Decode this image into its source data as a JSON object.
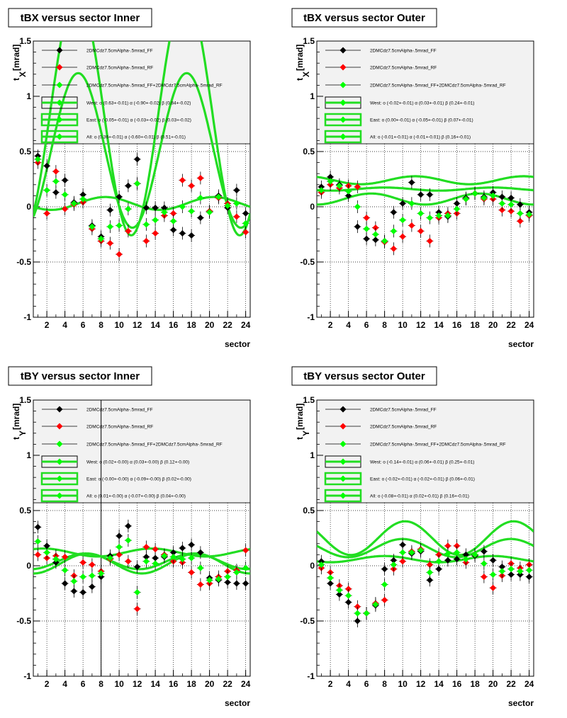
{
  "colors": {
    "ff": "#000000",
    "rf": "#ff0000",
    "sum": "#00ff00",
    "fit": "#22dd22",
    "legend_bg": "#f2f2f2"
  },
  "chart_data": [
    {
      "type": "scatter",
      "title": "tBX versus  sector Inner",
      "xlabel": "sector",
      "ylabel": "t",
      "ylabel_sub": "X",
      "ylabel_unit": "[mrad]",
      "xlim": [
        0.5,
        24.5
      ],
      "ylim": [
        -1,
        1.5
      ],
      "xticks": [
        2,
        4,
        6,
        8,
        10,
        12,
        14,
        16,
        18,
        20,
        22,
        24
      ],
      "yticks": [
        -1,
        -0.5,
        0,
        0.5,
        1,
        1.5
      ],
      "ytick_labels": [
        "-1",
        "-0.5",
        "0",
        "0.5",
        "1",
        "1.5"
      ],
      "grid": true,
      "legend_y_bottom": 0.57,
      "legend": [
        "2DMCdz7.5cmAlpha-.5mrad_FF",
        "2DMCdz7.5cmAlpha-.5mrad_RF",
        "2DMCdz7.5cmAlpha-.5mrad_FF+2DMCdz7.5cmAlpha-.5mrad_RF",
        "West: o (0.63+-0.01) α (-0.90+-0.02) β (0.84+-0.02)",
        "East: o (-0.05+-0.01) α (-0.03+-0.02) β (0.03+-0.02)",
        "All: o (0.36+-0.01) α (-0.60+-0.01) β (0.51+-0.01)"
      ],
      "series": [
        {
          "name": "2DMCdz7.5cmAlpha-.5mrad_FF",
          "values": [
            0.46,
            0.37,
            0.13,
            0.24,
            0.04,
            0.11,
            -0.17,
            -0.27,
            -0.03,
            0.09,
            0.19,
            0.43,
            -0.01,
            -0.01,
            -0.01,
            -0.21,
            -0.24,
            -0.26,
            -0.1,
            -0.04,
            0.1,
            -0.01,
            0.15,
            -0.06
          ]
        },
        {
          "name": "2DMCdz7.5cmAlpha-.5mrad_RF",
          "values": [
            0.4,
            -0.06,
            0.32,
            -0.02,
            0.02,
            0.04,
            -0.2,
            -0.31,
            -0.33,
            -0.43,
            -0.22,
            0.21,
            -0.31,
            -0.24,
            -0.08,
            -0.06,
            0.24,
            0.19,
            0.26,
            -0.04,
            0.08,
            0.03,
            -0.09,
            -0.23
          ]
        },
        {
          "name": "2DMCdz7.5cmAlpha-.5mrad_FF+2DMCdz7.5cmAlpha-.5mrad_RF",
          "values": [
            0.43,
            0.15,
            0.23,
            0.11,
            0.03,
            0.07,
            -0.18,
            -0.29,
            -0.18,
            -0.17,
            -0.02,
            0.21,
            -0.16,
            -0.12,
            -0.05,
            -0.13,
            0.0,
            -0.04,
            0.08,
            -0.05,
            0.09,
            0.01,
            0.03,
            -0.15
          ]
        }
      ],
      "fits": [
        {
          "name": "West",
          "o": 0.63,
          "alpha": -0.9,
          "beta": 0.84
        },
        {
          "name": "East",
          "o": -0.05,
          "alpha": -0.03,
          "beta": 0.03
        },
        {
          "name": "All",
          "o": 0.36,
          "alpha": -0.6,
          "beta": 0.51
        }
      ]
    },
    {
      "type": "scatter",
      "title": "tBX versus  sector Outer",
      "xlabel": "sector",
      "ylabel": "t",
      "ylabel_sub": "X",
      "ylabel_unit": "[mrad]",
      "xlim": [
        0.5,
        24.5
      ],
      "ylim": [
        -1,
        1.5
      ],
      "xticks": [
        2,
        4,
        6,
        8,
        10,
        12,
        14,
        16,
        18,
        20,
        22,
        24
      ],
      "yticks": [
        -1,
        -0.5,
        0,
        0.5,
        1,
        1.5
      ],
      "ytick_labels": [
        "-1",
        "-0.5",
        "0",
        "0.5",
        "1",
        "1.5"
      ],
      "grid": true,
      "legend_y_bottom": 0.57,
      "legend": [
        "2DMCdz7.5cmAlpha-.5mrad_FF",
        "2DMCdz7.5cmAlpha-.5mrad_RF",
        "2DMCdz7.5cmAlpha-.5mrad_FF+2DMCdz7.5cmAlpha-.5mrad_RF",
        "West: o (-0.02+-0.01) α (0.03+-0.01) β (0.24+-0.01)",
        "East: o (0.00+-0.01) α (-0.05+-0.01) β (0.07+-0.01)",
        "All: o (-0.01+-0.01) α (-0.01+-0.01) β (0.16+-0.01)"
      ],
      "series": [
        {
          "name": "2DMCdz7.5cmAlpha-.5mrad_FF",
          "values": [
            0.18,
            0.27,
            0.2,
            0.1,
            -0.18,
            -0.29,
            -0.3,
            -0.31,
            -0.05,
            0.03,
            0.22,
            0.11,
            0.11,
            -0.05,
            -0.09,
            0.03,
            0.08,
            0.12,
            0.09,
            0.13,
            0.09,
            0.08,
            0.02,
            -0.05
          ]
        },
        {
          "name": "2DMCdz7.5cmAlpha-.5mrad_RF",
          "values": [
            0.13,
            0.2,
            0.17,
            0.19,
            0.18,
            -0.1,
            -0.19,
            -0.32,
            -0.38,
            -0.27,
            -0.17,
            -0.22,
            -0.31,
            -0.1,
            -0.06,
            -0.06,
            0.07,
            0.12,
            0.07,
            0.07,
            -0.03,
            -0.04,
            -0.13,
            -0.08
          ]
        },
        {
          "name": "2DMCdz7.5cmAlpha-.5mrad_FF+2DMCdz7.5cmAlpha-.5mrad_RF",
          "values": [
            0.15,
            0.23,
            0.19,
            0.14,
            0.0,
            -0.2,
            -0.25,
            -0.31,
            -0.22,
            -0.12,
            0.03,
            -0.06,
            -0.1,
            -0.08,
            -0.08,
            -0.02,
            0.07,
            0.12,
            0.08,
            0.1,
            0.03,
            0.02,
            -0.06,
            -0.07
          ]
        }
      ],
      "fits": [
        {
          "name": "West",
          "o": -0.02,
          "alpha": 0.03,
          "beta": 0.24
        },
        {
          "name": "East",
          "o": 0.0,
          "alpha": -0.05,
          "beta": 0.07
        },
        {
          "name": "All",
          "o": -0.01,
          "alpha": -0.01,
          "beta": 0.16
        }
      ]
    },
    {
      "type": "scatter",
      "title": "tBY versus  sector Inner",
      "xlabel": "sector",
      "ylabel": "t",
      "ylabel_sub": "Y",
      "ylabel_unit": "[mrad]",
      "xlim": [
        0.5,
        24.5
      ],
      "ylim": [
        -1,
        1.5
      ],
      "xticks": [
        2,
        4,
        6,
        8,
        10,
        12,
        14,
        16,
        18,
        20,
        22,
        24
      ],
      "yticks": [
        -1,
        -0.5,
        0,
        0.5,
        1,
        1.5
      ],
      "ytick_labels": [
        "-1",
        "-0.5",
        "0",
        "0.5",
        "1",
        "1.5"
      ],
      "grid": true,
      "marker_line_x": 8,
      "legend_y_bottom": 0.57,
      "legend": [
        "2DMCdz7.5cmAlpha-.5mrad_FF",
        "2DMCdz7.5cmAlpha-.5mrad_RF",
        "2DMCdz7.5cmAlpha-.5mrad_FF+2DMCdz7.5cmAlpha-.5mrad_RF",
        "West: o (0.02+-0.00) α (0.03+-0.00) β (0.12+-0.00)",
        "East: o (-0.00+-0.00) α (-0.09+-0.00) β (0.02+-0.00)",
        "All: o (0.01+-0.00) α (-0.07+-0.00) β (0.04+-0.00)"
      ],
      "series": [
        {
          "name": "2DMCdz7.5cmAlpha-.5mrad_FF",
          "values": [
            0.35,
            0.18,
            0.03,
            -0.16,
            -0.23,
            -0.24,
            -0.19,
            -0.1,
            0.09,
            0.27,
            0.36,
            -0.01,
            0.08,
            0.07,
            0.08,
            0.12,
            0.16,
            0.19,
            0.12,
            -0.11,
            -0.13,
            -0.15,
            -0.16,
            -0.16
          ]
        },
        {
          "name": "2DMCdz7.5cmAlpha-.5mrad_RF",
          "values": [
            0.1,
            0.07,
            0.09,
            0.08,
            -0.09,
            0.03,
            0.01,
            -0.05,
            0.06,
            0.1,
            0.04,
            -0.39,
            0.17,
            0.15,
            0.1,
            0.04,
            0.03,
            -0.06,
            -0.17,
            -0.16,
            -0.1,
            -0.05,
            -0.04,
            0.14
          ]
        },
        {
          "name": "2DMCdz7.5cmAlpha-.5mrad_FF+2DMCdz7.5cmAlpha-.5mrad_RF",
          "values": [
            0.22,
            0.12,
            0.06,
            -0.04,
            -0.14,
            -0.1,
            -0.09,
            -0.07,
            0.07,
            0.17,
            0.23,
            -0.24,
            0.04,
            0.02,
            0.09,
            0.08,
            0.06,
            0.07,
            -0.02,
            -0.13,
            -0.12,
            -0.1,
            -0.06,
            -0.02
          ]
        }
      ],
      "fits": [
        {
          "name": "West",
          "o": 0.02,
          "alpha": 0.03,
          "beta": 0.12
        },
        {
          "name": "East",
          "o": -0.0,
          "alpha": -0.09,
          "beta": 0.02
        },
        {
          "name": "All",
          "o": 0.01,
          "alpha": -0.07,
          "beta": 0.04
        }
      ]
    },
    {
      "type": "scatter",
      "title": "tBY versus  sector Outer",
      "xlabel": "sector",
      "ylabel": "t",
      "ylabel_sub": "Y",
      "ylabel_unit": "[mrad]",
      "xlim": [
        0.5,
        24.5
      ],
      "ylim": [
        -1,
        1.5
      ],
      "xticks": [
        2,
        4,
        6,
        8,
        10,
        12,
        14,
        16,
        18,
        20,
        22,
        24
      ],
      "yticks": [
        -1,
        -0.5,
        0,
        0.5,
        1,
        1.5
      ],
      "ytick_labels": [
        "-1",
        "-0.5",
        "0",
        "0.5",
        "1",
        "1.5"
      ],
      "grid": true,
      "legend_y_bottom": 0.57,
      "legend": [
        "2DMCdz7.5cmAlpha-.5mrad_FF",
        "2DMCdz7.5cmAlpha-.5mrad_RF",
        "2DMCdz7.5cmAlpha-.5mrad_FF+2DMCdz7.5cmAlpha-.5mrad_RF",
        "West: o (-0.14+-0.01) α (0.06+-0.01) β (0.25+-0.01)",
        "East: o (-0.02+-0.01) α (-0.02+-0.01) β (0.06+-0.01)",
        "All: o (-0.08+-0.01) α (0.02+-0.01) β (0.16+-0.01)"
      ],
      "series": [
        {
          "name": "2DMCdz7.5cmAlpha-.5mrad_FF",
          "values": [
            0.04,
            -0.16,
            -0.26,
            -0.33,
            -0.5,
            -0.43,
            -0.36,
            -0.03,
            0.05,
            0.19,
            0.11,
            0.13,
            -0.13,
            -0.03,
            0.05,
            0.06,
            0.1,
            0.09,
            0.13,
            0.05,
            -0.01,
            -0.08,
            -0.08,
            -0.1
          ]
        },
        {
          "name": "2DMCdz7.5cmAlpha-.5mrad_RF",
          "values": [
            -0.02,
            -0.06,
            -0.18,
            -0.21,
            -0.37,
            -0.43,
            -0.34,
            -0.31,
            -0.03,
            0.04,
            0.13,
            0.15,
            0.01,
            0.1,
            0.18,
            0.18,
            0.03,
            0.1,
            -0.1,
            -0.2,
            -0.09,
            0.02,
            -0.02,
            0.01
          ]
        },
        {
          "name": "2DMCdz7.5cmAlpha-.5mrad_FF+2DMCdz7.5cmAlpha-.5mrad_RF",
          "values": [
            0.01,
            -0.11,
            -0.22,
            -0.27,
            -0.43,
            -0.43,
            -0.35,
            -0.17,
            0.01,
            0.12,
            0.12,
            0.14,
            -0.06,
            0.04,
            0.11,
            0.12,
            0.06,
            0.1,
            0.02,
            -0.08,
            -0.05,
            -0.03,
            -0.05,
            -0.04
          ]
        }
      ],
      "fits": [
        {
          "name": "West",
          "o": -0.14,
          "alpha": 0.06,
          "beta": 0.25
        },
        {
          "name": "East",
          "o": -0.02,
          "alpha": -0.02,
          "beta": 0.06
        },
        {
          "name": "All",
          "o": -0.08,
          "alpha": 0.02,
          "beta": 0.16
        }
      ]
    }
  ]
}
